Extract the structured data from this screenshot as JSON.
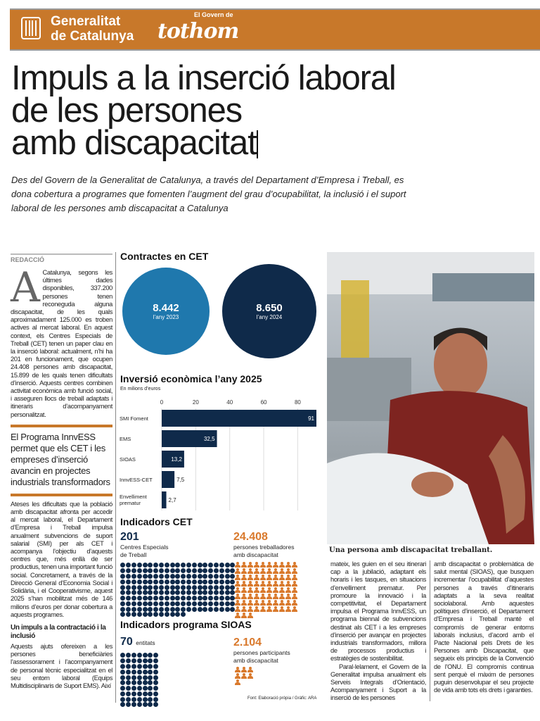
{
  "header": {
    "brand_line1": "Generalitat",
    "brand_line2": "de Catalunya",
    "campaign": "tothom",
    "campaign_prefix": "El Govern de"
  },
  "title": "Impuls a la inserció laboral de les persones amb discapacitat",
  "title_lines": [
    "Impuls a la inserció laboral",
    "de les persones",
    "amb discapacitat"
  ],
  "subtitle": "Des del Govern de la Generalitat de Catalunya, a través del Departament d’Empresa i Treball, es dona cobertura a programes que fomenten l’augment del grau d’ocupabilitat, la inclusió i el suport laboral de les persones amb discapacitat a Catalunya",
  "byline": "REDACCIÓ",
  "drop_cap": "A",
  "body1": "Catalunya, segons les últimes dades disponibles, 337.200 persones tenen reconeguda alguna discapacitat, de les quals aproximadament 125.000 es troben actives al mercat laboral. En aquest context, els Centres Especials de Treball (CET) tenen un paper clau en la inserció laboral: actualment, n’hi ha 201 en funcionament, que ocupen 24.408 persones amb discapacitat, 15.899 de les quals tenen dificultats d’inserció. Aquests centres combinen activitat econòmica amb funció social, i asseguren llocs de treball adaptats i itineraris d’acompanyament personalitzat.",
  "pullquote": "El Programa InnvESS permet que els CET i les empreses d’inserció avancin en projectes industrials transformadors",
  "body2": "Ateses les dificultats que la població amb discapacitat afronta per accedir al mercat laboral, el Departament d’Empresa i Treball impulsa anualment subvencions de suport salarial (SMI) per als CET i acompanya l’objectiu d’aquests centres que, més enllà de ser productius, tenen una important funció social. Concretament, a través de la Direcció General d’Economia Social i Solidària, i el Cooperativisme, aquest 2025 s’han mobilitzat més de 146 milions d’euros per donar cobertura a aquests programes.",
  "subhead": "Un impuls a la contractació i la inclusió",
  "body2b": "Aquests ajuts ofereixen a les persones beneficiàries l’assessorament i l’acompanyament de personal tècnic especialitzat en el seu entorn laboral (Equips Multidisciplinaris de Suport EMS). Així",
  "body3": "mateix, les guien en el seu itinerari cap a la jubilació, adaptant els horaris i les tasques, en situacions d’envelliment prematur. Per promoure la innovació i la competitivitat, el Departament impulsa el Programa InnvESS, un programa biennal de subvencions destinat als CET i a les empreses d’inserció per avançar en projectes industrials transformadors, millora de processos productius i estratègies de sostenibilitat.",
  "body3b": "Paral·lelament, el Govern de la Generalitat impulsa anualment els Serveis Integrals d’Orientació, Acompanyament i Suport a la inserció de les persones",
  "body4": "amb discapacitat o problemàtica de salut mental (SIOAS), que busquen incrementar l’ocupabilitat d’aquestes persones a través d’itineraris adaptats a la seva realitat sociolaboral. Amb aquestes polítiques d’inserció, el Departament d’Empresa i Treball manté el compromís de generar entorns laborals inclusius, d’acord amb el Pacte Nacional pels Drets de les Persones amb Discapacitat, que segueix els principis de la Convenció de l’ONU. El compromís continua sent perquè el màxim de persones puguin desenvolupar el seu projecte de vida amb tots els drets i garanties.",
  "photo_caption": "Una persona amb discapacitat treballant.",
  "contractes": {
    "title": "Contractes en CET",
    "items": [
      {
        "value": "8.442",
        "label": "l’any 2023",
        "color": "#1f78ad"
      },
      {
        "value": "8.650",
        "label": "l’any 2024",
        "color": "#0f2a4a"
      }
    ]
  },
  "chart_data": {
    "type": "bar",
    "orientation": "horizontal",
    "title": "Inversió econòmica l’any 2025",
    "subtitle": "En milions d’euros",
    "categories": [
      "SMI Foment",
      "EMS",
      "SIOAS",
      "InnvESS-CET",
      "Envelliment prematur"
    ],
    "values": [
      91,
      32.5,
      13.2,
      7.5,
      2.7
    ],
    "value_labels": [
      "91",
      "32,5",
      "13,2",
      "7,5",
      "2,7"
    ],
    "xticks": [
      0,
      20,
      40,
      60,
      80
    ],
    "xlim": [
      0,
      91
    ],
    "grid": true,
    "color": "#0f2a4a"
  },
  "cet": {
    "title": "Indicadors CET",
    "centres_value": "201",
    "centres_label1": "Centres Especials",
    "centres_label2": "de Treball",
    "centres_count": 201,
    "workers_value": "24.408",
    "workers_label1": "persones treballadores",
    "workers_label2": "amb discapacitat",
    "workers_icons": 83
  },
  "sioas": {
    "title": "Indicadors programa SIOAS",
    "entitats_value": "70",
    "entitats_label": "entitats",
    "entitats_count": 70,
    "participants_value": "2.104",
    "participants_label1": "persones participants",
    "participants_label2": "amb discapacitat",
    "participants_icons": 7
  },
  "source": "Font: Elaboració pròpia / Gràfic: ARA",
  "colors": {
    "orange": "#c8782a",
    "navy": "#0f2a4a",
    "blue": "#1f78ad",
    "people": "#d9792c"
  }
}
